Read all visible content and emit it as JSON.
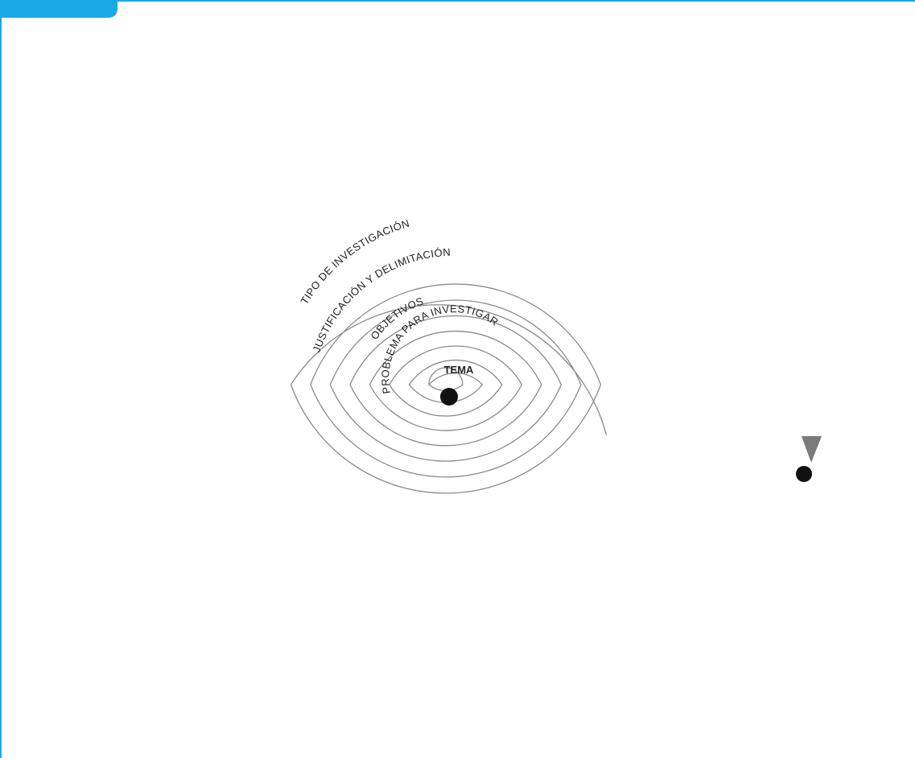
{
  "diagram": {
    "center_label": "TEMA",
    "ring_labels": [
      "PROBLEMA PARA INVESTIGAR",
      "OBJETIVOS",
      "JUSTIFICACIÓN Y DELIMITACIÓN",
      "TIPO DE INVESTIGACIÓN"
    ]
  },
  "colors": {
    "frame": "#1aa8e6",
    "spiral": "#8a8a8a",
    "arrow": "#7a7a7a",
    "dot": "#111111",
    "text": "#222222"
  }
}
